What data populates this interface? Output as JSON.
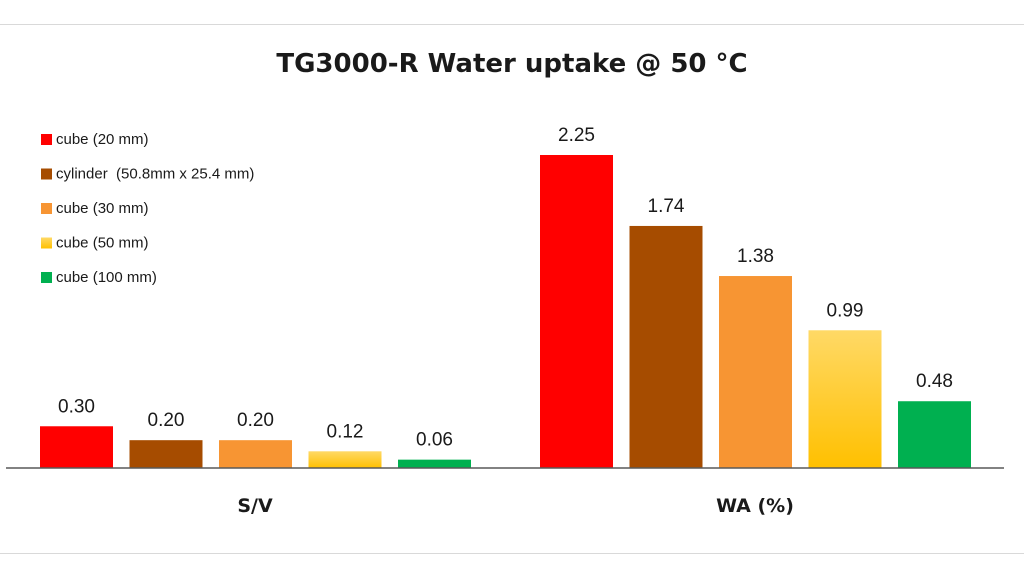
{
  "chart_data": {
    "type": "bar",
    "title": "TG3000-R Water uptake @ 50 °C",
    "categories": [
      "S/V",
      "WA (%)"
    ],
    "series": [
      {
        "name": "cube (20 mm)",
        "color": "#ff0000",
        "values": [
          0.3,
          2.25
        ],
        "labels": [
          "0.30",
          "2.25"
        ]
      },
      {
        "name": "cylinder  (50.8mm x 25.4 mm)",
        "color": "#a64c00",
        "values": [
          0.2,
          1.74
        ],
        "labels": [
          "0.20",
          "1.74"
        ]
      },
      {
        "name": "cube (30 mm)",
        "color": "#f79533",
        "values": [
          0.2,
          1.38
        ],
        "labels": [
          "0.20",
          "1.38"
        ]
      },
      {
        "name": "cube (50 mm)",
        "color": "#ffc000",
        "values": [
          0.12,
          0.99
        ],
        "labels": [
          "0.12",
          "0.99"
        ]
      },
      {
        "name": "cube (100 mm)",
        "color": "#00b050",
        "values": [
          0.06,
          0.48
        ],
        "labels": [
          "0.06",
          "0.48"
        ]
      }
    ],
    "xlabel": "",
    "ylabel": "",
    "ylim": [
      0,
      2.25
    ],
    "grid": false,
    "legend": "top-left"
  }
}
